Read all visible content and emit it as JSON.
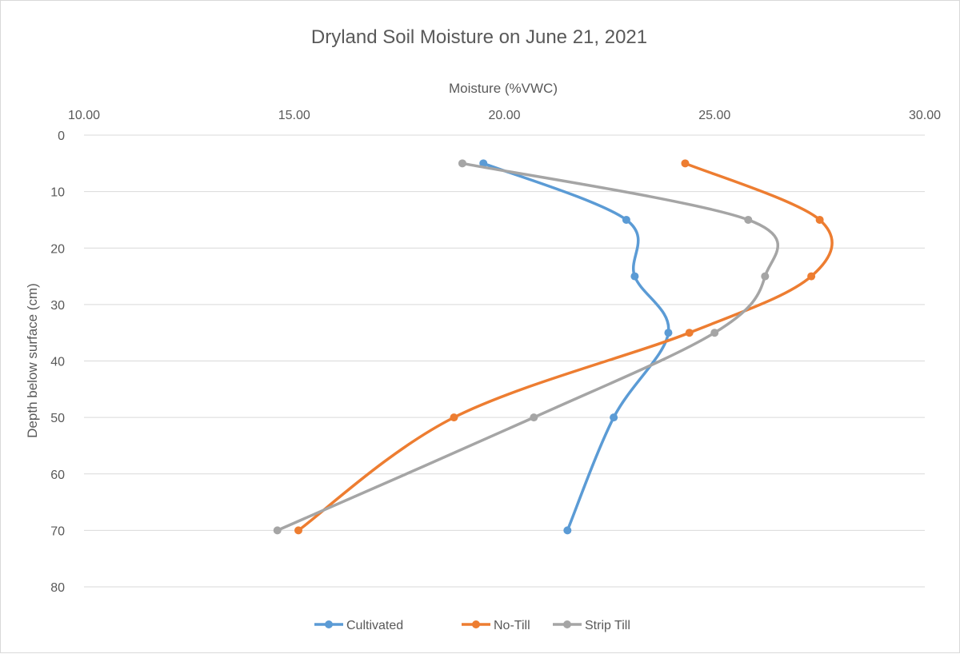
{
  "chart_data": {
    "type": "line",
    "title": "Dryland Soil Moisture on June 21, 2021",
    "xlabel": "Moisture (%VWC)",
    "ylabel": "Depth below surface (cm)",
    "xlim": [
      10,
      30
    ],
    "ylim": [
      0,
      80
    ],
    "x_ticks": [
      "10.00",
      "15.00",
      "20.00",
      "25.00",
      "30.00"
    ],
    "y_ticks": [
      "0",
      "10",
      "20",
      "30",
      "40",
      "50",
      "60",
      "70",
      "80"
    ],
    "y_inverted": true,
    "x_axis_position": "top",
    "grid": true,
    "legend_position": "bottom",
    "depths": [
      5,
      15,
      25,
      35,
      50,
      70
    ],
    "series": [
      {
        "name": "Cultivated",
        "color": "#5b9bd5",
        "values": [
          19.5,
          22.9,
          23.1,
          23.9,
          22.6,
          21.5
        ]
      },
      {
        "name": "No-Till",
        "color": "#ed7d31",
        "values": [
          24.3,
          27.5,
          27.3,
          24.4,
          18.8,
          15.1
        ]
      },
      {
        "name": "Strip Till",
        "color": "#a5a5a5",
        "values": [
          19.0,
          25.8,
          26.2,
          25.0,
          20.7,
          14.6
        ]
      }
    ]
  }
}
